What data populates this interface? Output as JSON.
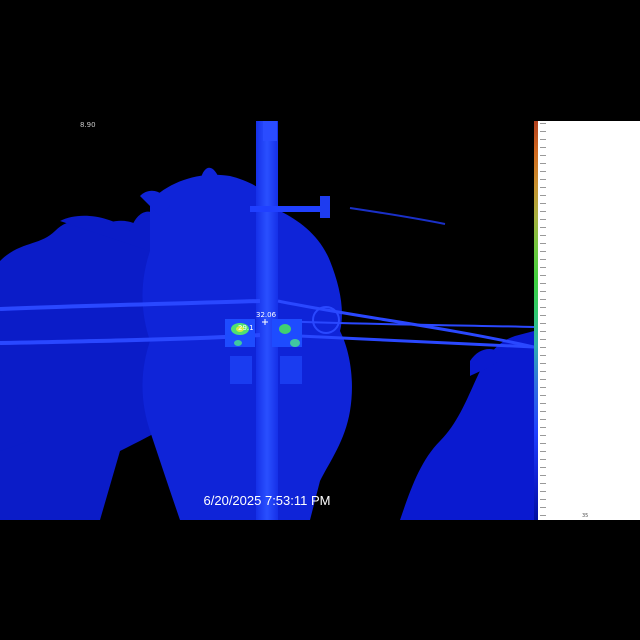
{
  "viewer": {
    "top_left_readout": "8.90",
    "timestamp": "6/20/2025 7:53:11 PM",
    "spot_readout_upper": "32.06",
    "spot_readout_lower": "29.1"
  },
  "scale": {
    "bottom_label": "35"
  },
  "colors": {
    "background": "#000000",
    "cold": "#0a1ad0",
    "mid": "#1e40ff",
    "warm": "#40d060",
    "hot": "#d0e040"
  }
}
